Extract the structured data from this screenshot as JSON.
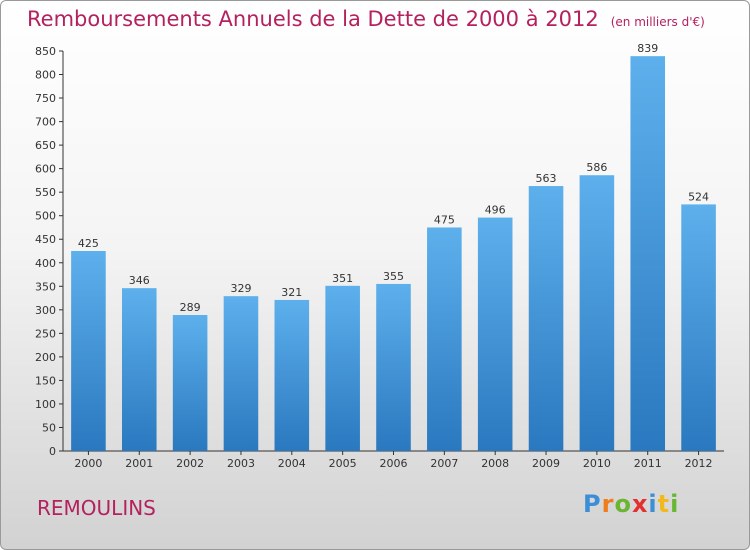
{
  "chart_data": {
    "type": "bar",
    "title": "Remboursements Annuels de la Dette de 2000 à 2012",
    "subtitle": "(en milliers d'€)",
    "categories": [
      "2000",
      "2001",
      "2002",
      "2003",
      "2004",
      "2005",
      "2006",
      "2007",
      "2008",
      "2009",
      "2010",
      "2011",
      "2012"
    ],
    "values": [
      425,
      346,
      289,
      329,
      321,
      351,
      355,
      475,
      496,
      563,
      586,
      839,
      524
    ],
    "ylim": [
      0,
      850
    ],
    "yticks": [
      0,
      50,
      100,
      150,
      200,
      250,
      300,
      350,
      400,
      450,
      500,
      550,
      600,
      650,
      700,
      750,
      800,
      850
    ],
    "xlabel": "",
    "ylabel": "",
    "grid": false,
    "bar_color": "#4a9fe0"
  },
  "footer": {
    "commune": "REMOULINS",
    "logo_text": "Proxiti"
  },
  "colors": {
    "title": "#b5215e",
    "logo": [
      "#3c8fd6",
      "#f07d1a",
      "#6ab531",
      "#e3302f",
      "#3c8fd6",
      "#f3b81b",
      "#6ab531"
    ]
  }
}
